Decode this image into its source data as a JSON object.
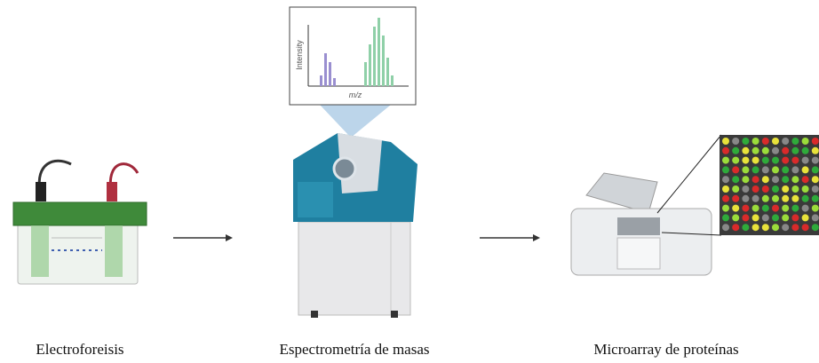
{
  "steps": [
    {
      "label": "Electroforeisis"
    },
    {
      "label": "Espectrometría de masas"
    },
    {
      "label": "Microarray de proteínas"
    }
  ],
  "spectrum": {
    "y_label": "Intensity",
    "x_label": "m/z"
  }
}
